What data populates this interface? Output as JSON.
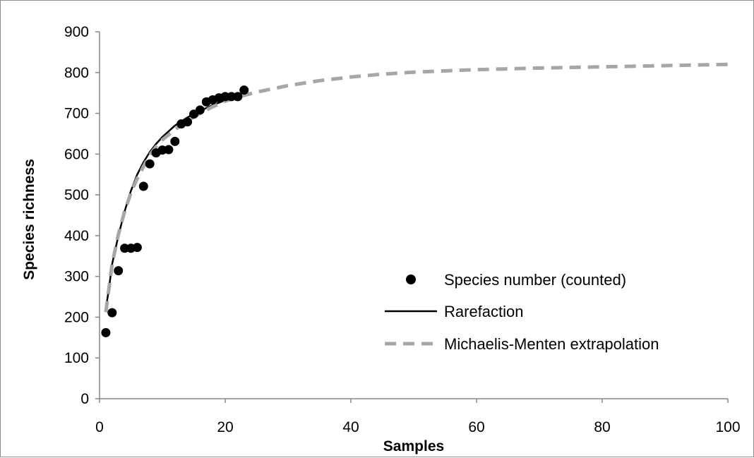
{
  "chart_data": {
    "type": "scatter",
    "xlabel": "Samples",
    "ylabel": "Species richness",
    "xlim": [
      0,
      100
    ],
    "ylim": [
      0,
      900
    ],
    "x_ticks": [
      "0",
      "20",
      "40",
      "60",
      "80",
      "100"
    ],
    "y_ticks": [
      "0",
      "100",
      "200",
      "300",
      "400",
      "500",
      "600",
      "700",
      "800",
      "900"
    ],
    "grid": false,
    "legend_position": "right",
    "series": [
      {
        "name": "Species number (counted)",
        "kind": "markers",
        "color": "#000000",
        "points": [
          [
            1,
            162
          ],
          [
            2,
            211
          ],
          [
            3,
            314
          ],
          [
            4,
            369
          ],
          [
            5,
            369
          ],
          [
            6,
            371
          ],
          [
            7,
            521
          ],
          [
            8,
            576
          ],
          [
            9,
            603
          ],
          [
            10,
            610
          ],
          [
            11,
            611
          ],
          [
            12,
            631
          ],
          [
            13,
            674
          ],
          [
            14,
            679
          ],
          [
            15,
            698
          ],
          [
            16,
            708
          ],
          [
            17,
            728
          ],
          [
            18,
            733
          ],
          [
            19,
            738
          ],
          [
            20,
            741
          ],
          [
            21,
            741
          ],
          [
            22,
            741
          ],
          [
            23,
            757
          ]
        ]
      },
      {
        "name": "Rarefaction",
        "kind": "line",
        "color": "#000000",
        "points": [
          [
            1,
            220
          ],
          [
            1.5,
            270
          ],
          [
            2,
            330
          ],
          [
            3,
            400
          ],
          [
            4,
            460
          ],
          [
            5,
            510
          ],
          [
            6,
            550
          ],
          [
            7,
            580
          ],
          [
            8,
            605
          ],
          [
            9,
            625
          ],
          [
            10,
            642
          ],
          [
            12,
            670
          ],
          [
            14,
            690
          ],
          [
            16,
            706
          ],
          [
            18,
            720
          ],
          [
            20,
            732
          ],
          [
            22,
            742
          ],
          [
            23,
            745
          ]
        ]
      },
      {
        "name": "Michaelis-Menten extrapolation",
        "kind": "dashed-line",
        "color": "#a6a6a6",
        "points": [
          [
            1,
            212
          ],
          [
            1.5,
            270
          ],
          [
            2,
            330
          ],
          [
            3,
            403
          ],
          [
            4,
            460
          ],
          [
            5,
            505
          ],
          [
            6,
            540
          ],
          [
            7,
            570
          ],
          [
            8,
            598
          ],
          [
            9,
            618
          ],
          [
            10,
            635
          ],
          [
            12,
            660
          ],
          [
            14,
            682
          ],
          [
            16,
            700
          ],
          [
            18,
            716
          ],
          [
            20,
            730
          ],
          [
            22,
            740
          ],
          [
            25,
            752
          ],
          [
            30,
            768
          ],
          [
            35,
            780
          ],
          [
            40,
            789
          ],
          [
            45,
            796
          ],
          [
            50,
            801
          ],
          [
            60,
            807
          ],
          [
            70,
            811
          ],
          [
            80,
            814
          ],
          [
            90,
            817
          ],
          [
            100,
            820
          ]
        ]
      }
    ]
  }
}
